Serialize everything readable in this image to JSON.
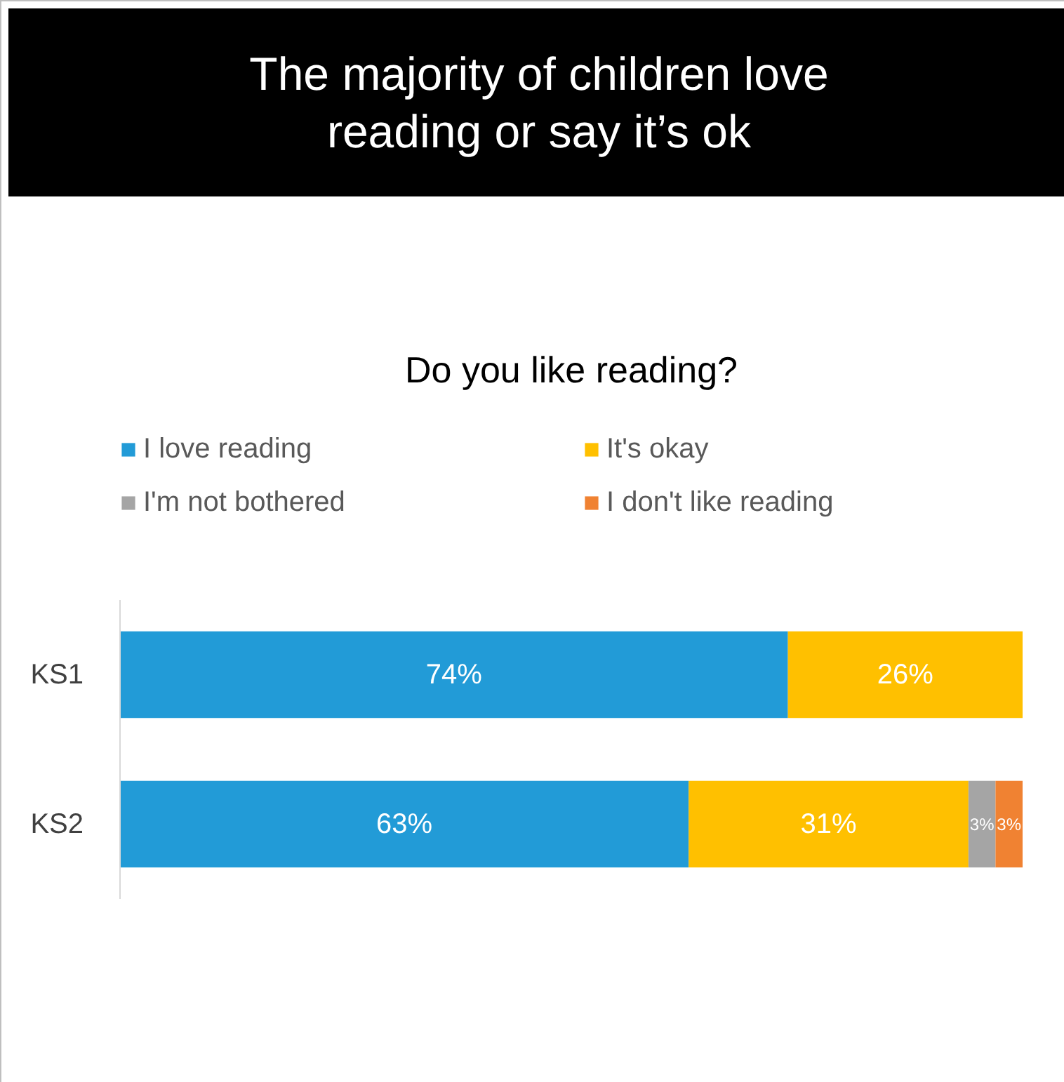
{
  "chart_data": {
    "type": "bar",
    "orientation": "horizontal",
    "stacked": true,
    "title": "The majority of children love reading or say it’s ok",
    "subtitle": "Do you like reading?",
    "categories": [
      "KS1",
      "KS2"
    ],
    "legend": "top",
    "series": [
      {
        "name": "I love reading",
        "color": "#229bd7",
        "values": [
          74,
          63
        ],
        "value_labels": [
          "74%",
          "63%"
        ]
      },
      {
        "name": "It's okay",
        "color": "#ffc000",
        "values": [
          26,
          31
        ],
        "value_labels": [
          "26%",
          "31%"
        ]
      },
      {
        "name": "I'm not bothered",
        "color": "#a5a5a5",
        "values": [
          null,
          3
        ],
        "value_labels": [
          null,
          "3%"
        ]
      },
      {
        "name": "I don't like reading",
        "color": "#f08232",
        "values": [
          null,
          3
        ],
        "value_labels": [
          null,
          "3%"
        ]
      }
    ]
  }
}
